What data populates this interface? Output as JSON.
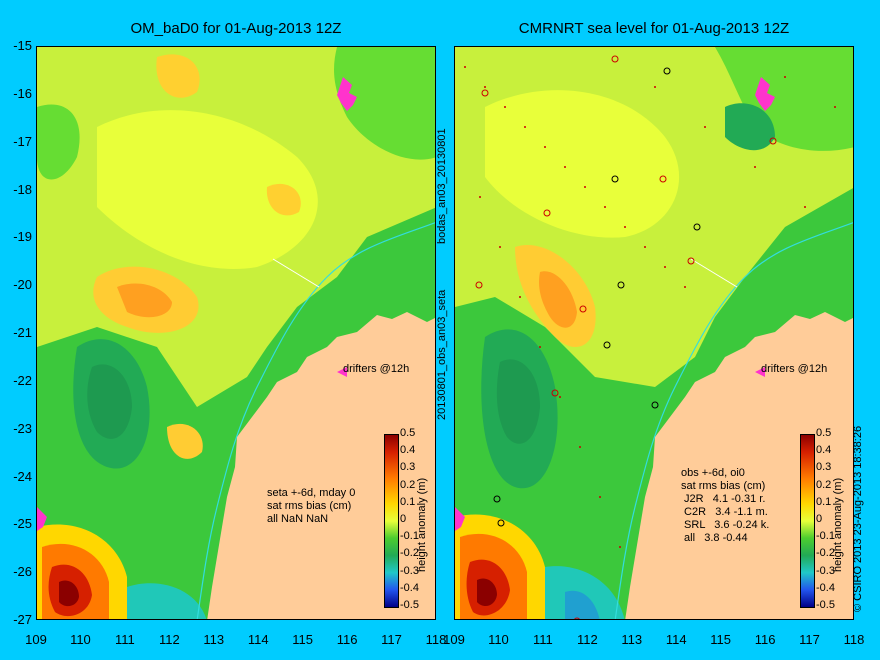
{
  "titles": {
    "left": "OM_baD0 for 01-Aug-2013 12Z",
    "right": "CMRNRT sea level  for 01-Aug-2013 12Z"
  },
  "y_ticks": [
    "-15",
    "-16",
    "-17",
    "-18",
    "-19",
    "-20",
    "-21",
    "-22",
    "-23",
    "-24",
    "-25",
    "-26",
    "-27"
  ],
  "x_ticks_left": [
    "109",
    "110",
    "111",
    "112",
    "113",
    "114",
    "115",
    "116",
    "117",
    "118"
  ],
  "x_ticks_right": [
    "109",
    "110",
    "111",
    "112",
    "113",
    "114",
    "115",
    "116",
    "117",
    "118"
  ],
  "left_info": "seta +-6d, mday 0\nsat rms bias (cm)\nall NaN NaN",
  "right_info": "obs +-6d, oi0\nsat rms bias (cm)\n J2R   4.1 -0.31 r.\n C2R   3.4 -1.1 m.\n SRL   3.6 -0.24 k.\n all   3.8 -0.44",
  "drifters_label": "drifters @12h",
  "side_text_1": "bodas_an03_20130801",
  "side_text_2": "20130801_obs_an03_seta",
  "copyright": "© CSIRO 2013   23-Aug-2013 18:38:26",
  "colorbar": {
    "unit_label": "height anomaly (m)",
    "ticks": [
      "0.5",
      "0.4",
      "0.3",
      "0.2",
      "0.1",
      "0",
      "-0.1",
      "-0.2",
      "-0.3",
      "-0.4",
      "-0.5"
    ]
  },
  "colors": {
    "background": "#00ccff",
    "land": "#ffcc99",
    "shelf_contour": "#33dddd",
    "drifter": "#ff33cc"
  },
  "map_extent": {
    "lon": [
      109,
      118
    ],
    "lat": [
      -27,
      -15
    ]
  }
}
